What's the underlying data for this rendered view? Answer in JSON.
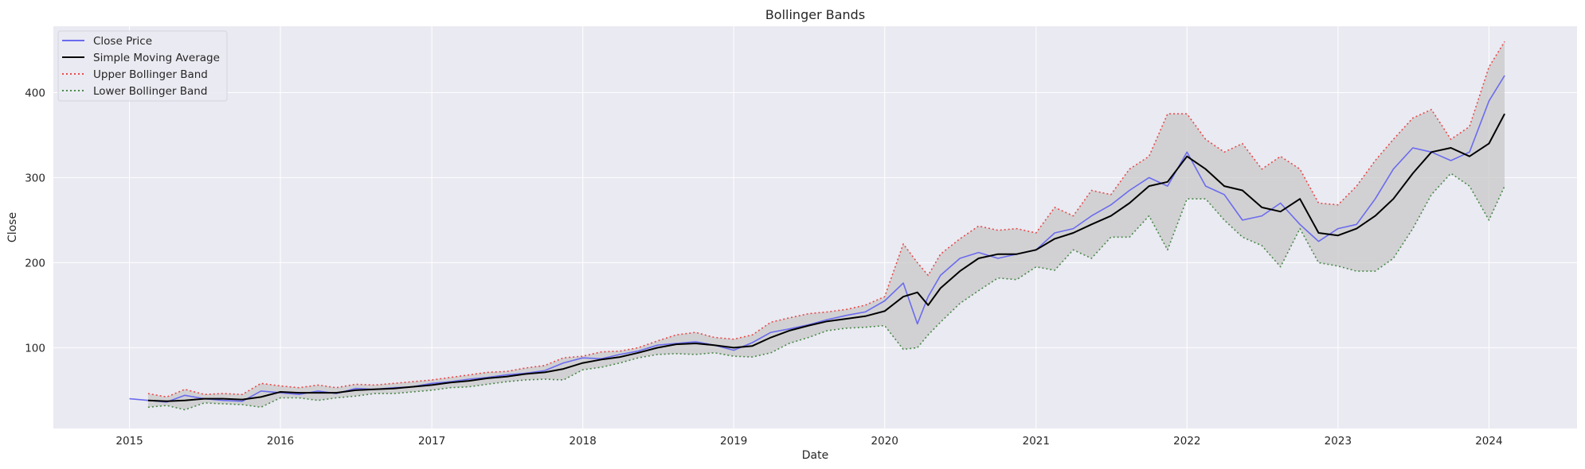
{
  "chart_data": {
    "type": "line",
    "title": "Bollinger Bands",
    "xlabel": "Date",
    "ylabel": "Close",
    "x_ticks": [
      "2015",
      "2016",
      "2017",
      "2018",
      "2019",
      "2020",
      "2021",
      "2022",
      "2023",
      "2024"
    ],
    "x_range": [
      "2014-07-01",
      "2024-08-01"
    ],
    "y_ticks": [
      100,
      200,
      300,
      400
    ],
    "ylim": [
      5,
      478
    ],
    "grid": true,
    "legend_position": "top-left",
    "colors": {
      "background": "#eaeaf2",
      "grid": "#ffffff",
      "close": "#6b6bef",
      "sma": "#000000",
      "upper": "#e84a4a",
      "lower": "#4a8a4a",
      "fill": "#c8c8c8"
    },
    "series": [
      {
        "name": "Close Price",
        "x": [
          "2015-01-01",
          "2015-02-15",
          "2015-04-01",
          "2015-05-15",
          "2015-07-01",
          "2015-08-15",
          "2015-10-01",
          "2015-11-15",
          "2016-01-01",
          "2016-02-15",
          "2016-04-01",
          "2016-05-15",
          "2016-07-01",
          "2016-08-15",
          "2016-10-01",
          "2016-11-15",
          "2017-01-01",
          "2017-02-15",
          "2017-04-01",
          "2017-05-15",
          "2017-07-01",
          "2017-08-15",
          "2017-10-01",
          "2017-11-15",
          "2018-01-01",
          "2018-02-15",
          "2018-04-01",
          "2018-05-15",
          "2018-07-01",
          "2018-08-15",
          "2018-10-01",
          "2018-11-15",
          "2019-01-01",
          "2019-02-15",
          "2019-04-01",
          "2019-05-15",
          "2019-07-01",
          "2019-08-15",
          "2019-10-01",
          "2019-11-15",
          "2020-01-01",
          "2020-02-15",
          "2020-03-20",
          "2020-04-15",
          "2020-05-15",
          "2020-07-01",
          "2020-08-15",
          "2020-10-01",
          "2020-11-15",
          "2021-01-01",
          "2021-02-15",
          "2021-04-01",
          "2021-05-15",
          "2021-07-01",
          "2021-08-15",
          "2021-10-01",
          "2021-11-15",
          "2022-01-01",
          "2022-02-15",
          "2022-04-01",
          "2022-05-15",
          "2022-07-01",
          "2022-08-15",
          "2022-10-01",
          "2022-11-15",
          "2023-01-01",
          "2023-02-15",
          "2023-04-01",
          "2023-05-15",
          "2023-07-01",
          "2023-08-15",
          "2023-10-01",
          "2023-11-15",
          "2024-01-01",
          "2024-02-08"
        ],
        "values": [
          40,
          38,
          36,
          44,
          40,
          38,
          37,
          49,
          47,
          45,
          49,
          46,
          52,
          51,
          53,
          54,
          58,
          60,
          63,
          65,
          68,
          70,
          73,
          82,
          88,
          87,
          92,
          96,
          103,
          105,
          107,
          103,
          97,
          106,
          118,
          122,
          127,
          133,
          138,
          142,
          155,
          176,
          128,
          160,
          185,
          205,
          212,
          205,
          210,
          215,
          235,
          240,
          255,
          268,
          285,
          300,
          290,
          330,
          290,
          280,
          250,
          255,
          270,
          245,
          225,
          240,
          245,
          275,
          310,
          335,
          330,
          320,
          330,
          390,
          420
        ]
      },
      {
        "name": "Simple Moving Average",
        "x": [
          "2015-02-15",
          "2015-04-01",
          "2015-05-15",
          "2015-07-01",
          "2015-08-15",
          "2015-10-01",
          "2015-11-15",
          "2016-01-01",
          "2016-02-15",
          "2016-04-01",
          "2016-05-15",
          "2016-07-01",
          "2016-08-15",
          "2016-10-01",
          "2016-11-15",
          "2017-01-01",
          "2017-02-15",
          "2017-04-01",
          "2017-05-15",
          "2017-07-01",
          "2017-08-15",
          "2017-10-01",
          "2017-11-15",
          "2018-01-01",
          "2018-02-15",
          "2018-04-01",
          "2018-05-15",
          "2018-07-01",
          "2018-08-15",
          "2018-10-01",
          "2018-11-15",
          "2019-01-01",
          "2019-02-15",
          "2019-04-01",
          "2019-05-15",
          "2019-07-01",
          "2019-08-15",
          "2019-10-01",
          "2019-11-15",
          "2020-01-01",
          "2020-02-15",
          "2020-03-20",
          "2020-04-15",
          "2020-05-15",
          "2020-07-01",
          "2020-08-15",
          "2020-10-01",
          "2020-11-15",
          "2021-01-01",
          "2021-02-15",
          "2021-04-01",
          "2021-05-15",
          "2021-07-01",
          "2021-08-15",
          "2021-10-01",
          "2021-11-15",
          "2022-01-01",
          "2022-02-15",
          "2022-04-01",
          "2022-05-15",
          "2022-07-01",
          "2022-08-15",
          "2022-10-01",
          "2022-11-15",
          "2023-01-01",
          "2023-02-15",
          "2023-04-01",
          "2023-05-15",
          "2023-07-01",
          "2023-08-15",
          "2023-10-01",
          "2023-11-15",
          "2024-01-01",
          "2024-02-08"
        ],
        "values": [
          38,
          37,
          38,
          40,
          40,
          39,
          42,
          48,
          47,
          47,
          47,
          50,
          51,
          52,
          54,
          56,
          59,
          61,
          64,
          66,
          69,
          71,
          75,
          82,
          86,
          89,
          94,
          100,
          104,
          105,
          103,
          100,
          102,
          112,
          120,
          126,
          131,
          134,
          137,
          143,
          160,
          165,
          150,
          170,
          190,
          205,
          210,
          210,
          215,
          228,
          235,
          245,
          255,
          270,
          290,
          295,
          325,
          310,
          290,
          285,
          265,
          260,
          275,
          235,
          232,
          240,
          255,
          275,
          305,
          330,
          335,
          325,
          340,
          375
        ]
      },
      {
        "name": "Upper Bollinger Band",
        "x": [
          "2015-02-15",
          "2015-04-01",
          "2015-05-15",
          "2015-07-01",
          "2015-08-15",
          "2015-10-01",
          "2015-11-15",
          "2016-01-01",
          "2016-02-15",
          "2016-04-01",
          "2016-05-15",
          "2016-07-01",
          "2016-08-15",
          "2016-10-01",
          "2016-11-15",
          "2017-01-01",
          "2017-02-15",
          "2017-04-01",
          "2017-05-15",
          "2017-07-01",
          "2017-08-15",
          "2017-10-01",
          "2017-11-15",
          "2018-01-01",
          "2018-02-15",
          "2018-04-01",
          "2018-05-15",
          "2018-07-01",
          "2018-08-15",
          "2018-10-01",
          "2018-11-15",
          "2019-01-01",
          "2019-02-15",
          "2019-04-01",
          "2019-05-15",
          "2019-07-01",
          "2019-08-15",
          "2019-10-01",
          "2019-11-15",
          "2020-01-01",
          "2020-02-15",
          "2020-03-20",
          "2020-04-15",
          "2020-05-15",
          "2020-07-01",
          "2020-08-15",
          "2020-10-01",
          "2020-11-15",
          "2021-01-01",
          "2021-02-15",
          "2021-04-01",
          "2021-05-15",
          "2021-07-01",
          "2021-08-15",
          "2021-10-01",
          "2021-11-15",
          "2022-01-01",
          "2022-02-15",
          "2022-04-01",
          "2022-05-15",
          "2022-07-01",
          "2022-08-15",
          "2022-10-01",
          "2022-11-15",
          "2023-01-01",
          "2023-02-15",
          "2023-04-01",
          "2023-05-15",
          "2023-07-01",
          "2023-08-15",
          "2023-10-01",
          "2023-11-15",
          "2024-01-01",
          "2024-02-08"
        ],
        "values": [
          46,
          42,
          51,
          45,
          46,
          45,
          58,
          55,
          53,
          56,
          53,
          57,
          56,
          58,
          60,
          62,
          65,
          68,
          71,
          72,
          76,
          79,
          88,
          90,
          95,
          96,
          100,
          108,
          115,
          118,
          112,
          110,
          115,
          130,
          135,
          140,
          142,
          145,
          150,
          160,
          222,
          200,
          185,
          210,
          228,
          243,
          238,
          240,
          235,
          265,
          255,
          285,
          280,
          310,
          325,
          375,
          375,
          345,
          330,
          340,
          310,
          325,
          310,
          270,
          268,
          290,
          320,
          345,
          370,
          380,
          345,
          360,
          430,
          460
        ]
      },
      {
        "name": "Lower Bollinger Band",
        "x": [
          "2015-02-15",
          "2015-04-01",
          "2015-05-15",
          "2015-07-01",
          "2015-08-15",
          "2015-10-01",
          "2015-11-15",
          "2016-01-01",
          "2016-02-15",
          "2016-04-01",
          "2016-05-15",
          "2016-07-01",
          "2016-08-15",
          "2016-10-01",
          "2016-11-15",
          "2017-01-01",
          "2017-02-15",
          "2017-04-01",
          "2017-05-15",
          "2017-07-01",
          "2017-08-15",
          "2017-10-01",
          "2017-11-15",
          "2018-01-01",
          "2018-02-15",
          "2018-04-01",
          "2018-05-15",
          "2018-07-01",
          "2018-08-15",
          "2018-10-01",
          "2018-11-15",
          "2019-01-01",
          "2019-02-15",
          "2019-04-01",
          "2019-05-15",
          "2019-07-01",
          "2019-08-15",
          "2019-10-01",
          "2019-11-15",
          "2020-01-01",
          "2020-02-15",
          "2020-03-20",
          "2020-04-15",
          "2020-05-15",
          "2020-07-01",
          "2020-08-15",
          "2020-10-01",
          "2020-11-15",
          "2021-01-01",
          "2021-02-15",
          "2021-04-01",
          "2021-05-15",
          "2021-07-01",
          "2021-08-15",
          "2021-10-01",
          "2021-11-15",
          "2022-01-01",
          "2022-02-15",
          "2022-04-01",
          "2022-05-15",
          "2022-07-01",
          "2022-08-15",
          "2022-10-01",
          "2022-11-15",
          "2023-01-01",
          "2023-02-15",
          "2023-04-01",
          "2023-05-15",
          "2023-07-01",
          "2023-08-15",
          "2023-10-01",
          "2023-11-15",
          "2024-01-01",
          "2024-02-08"
        ],
        "values": [
          30,
          32,
          27,
          35,
          34,
          33,
          30,
          41,
          41,
          38,
          41,
          43,
          46,
          46,
          48,
          50,
          53,
          54,
          57,
          60,
          62,
          63,
          62,
          74,
          77,
          82,
          88,
          92,
          93,
          92,
          94,
          90,
          89,
          94,
          105,
          112,
          120,
          123,
          124,
          126,
          98,
          100,
          115,
          130,
          152,
          167,
          182,
          180,
          195,
          191,
          215,
          205,
          230,
          230,
          255,
          215,
          275,
          275,
          250,
          230,
          220,
          195,
          240,
          200,
          196,
          190,
          190,
          205,
          240,
          280,
          305,
          290,
          250,
          290
        ]
      }
    ]
  }
}
